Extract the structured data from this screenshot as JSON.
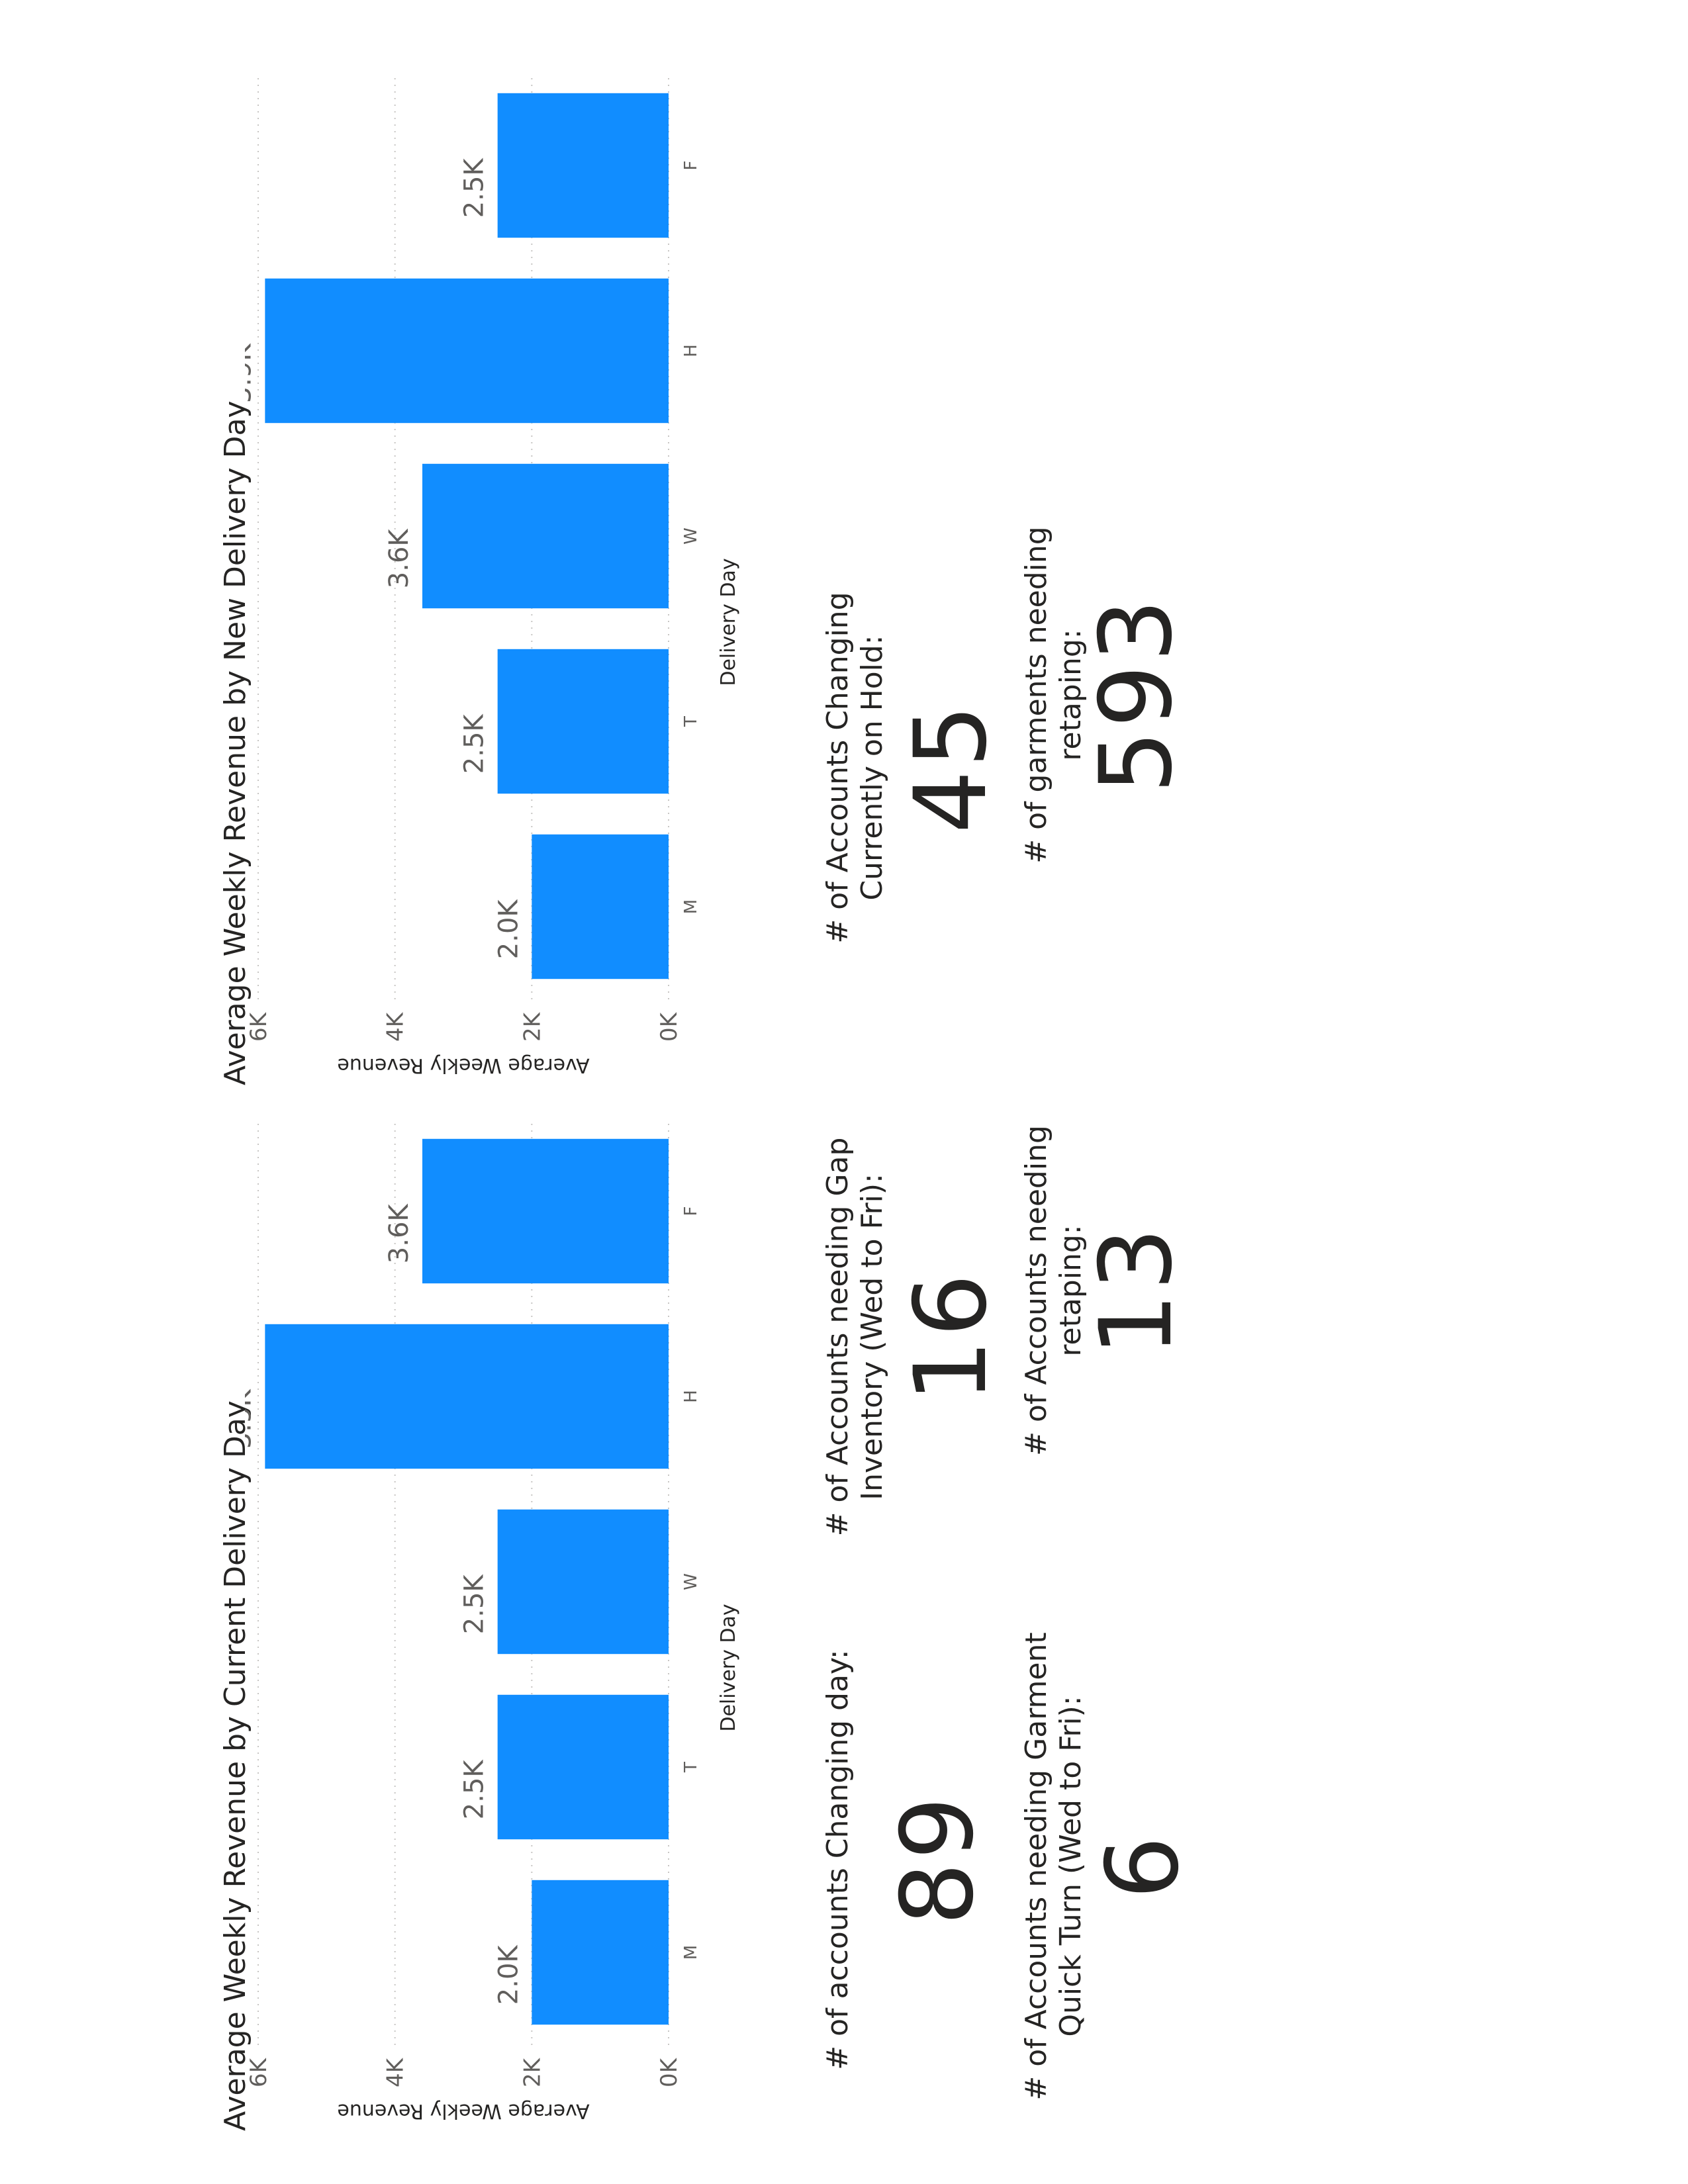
{
  "chart_data": [
    {
      "type": "bar",
      "title": "Average Weekly Revenue by Current Delivery Day",
      "xlabel": "Delivery Day",
      "ylabel": "Average Weekly Revenue",
      "categories": [
        "M",
        "T",
        "W",
        "H",
        "F"
      ],
      "values": [
        2000,
        2500,
        2500,
        5900,
        3600
      ],
      "data_labels": [
        "2.0K",
        "2.5K",
        "2.5K",
        "5.9K",
        "3.6K"
      ],
      "ylim": [
        0,
        6000
      ],
      "yticks": [
        0,
        2000,
        4000,
        6000
      ],
      "ytick_labels": [
        "0K",
        "2K",
        "4K",
        "6K"
      ],
      "grid": true,
      "bar_color": "#118DFF"
    },
    {
      "type": "bar",
      "title": "Average Weekly Revenue by New Delivery Day",
      "xlabel": "Delivery Day",
      "ylabel": "Average Weekly Revenue",
      "categories": [
        "M",
        "T",
        "W",
        "H",
        "F"
      ],
      "values": [
        2000,
        2500,
        3600,
        5900,
        2500
      ],
      "data_labels": [
        "2.0K",
        "2.5K",
        "3.6K",
        "5.9K",
        "2.5K"
      ],
      "ylim": [
        0,
        6000
      ],
      "yticks": [
        0,
        2000,
        4000,
        6000
      ],
      "ytick_labels": [
        "0K",
        "2K",
        "4K",
        "6K"
      ],
      "grid": true,
      "bar_color": "#118DFF"
    }
  ],
  "kpis": {
    "changing_day": {
      "label": "# of accounts Changing day:",
      "value": "89"
    },
    "gap_inventory": {
      "label": "# of Accounts needing Gap Inventory (Wed to Fri):",
      "value": "16"
    },
    "on_hold": {
      "label": "# of Accounts Changing Currently on Hold:",
      "value": "45"
    },
    "quick_turn": {
      "label": "# of Accounts needing Garment Quick Turn (Wed to Fri):",
      "value": "6"
    },
    "accounts_retaping": {
      "label": "# of Accounts needing retaping:",
      "value": "13"
    },
    "garments_retaping": {
      "label": "# of garments needing retaping:",
      "value": "593"
    }
  }
}
